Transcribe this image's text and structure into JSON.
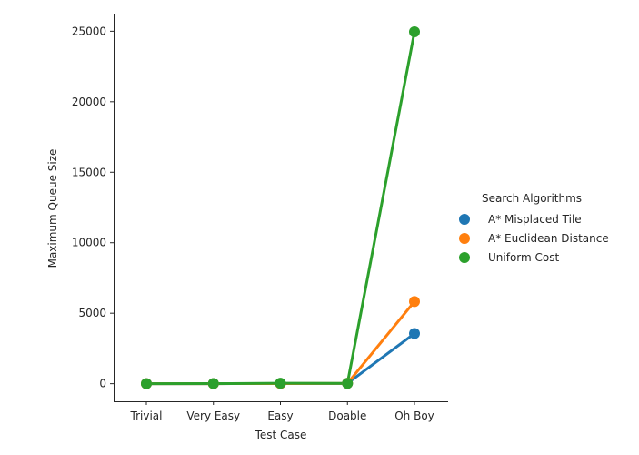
{
  "chart_data": {
    "type": "line",
    "categories": [
      "Trivial",
      "Very Easy",
      "Easy",
      "Doable",
      "Oh Boy"
    ],
    "xlabel": "Test Case",
    "ylabel": "Maximum Queue Size",
    "ylim": [
      -1250,
      26250
    ],
    "yticks": [
      0,
      5000,
      10000,
      15000,
      20000,
      25000
    ],
    "legend": {
      "title": "Search Algorithms",
      "placement": "right"
    },
    "series": [
      {
        "name": "A* Misplaced Tile",
        "color": "#1f77b4",
        "values": [
          1,
          4,
          10,
          20,
          3560
        ]
      },
      {
        "name": "A* Euclidean Distance",
        "color": "#ff7f0e",
        "values": [
          1,
          4,
          10,
          22,
          5830
        ]
      },
      {
        "name": "Uniform Cost",
        "color": "#2ca02c",
        "values": [
          1,
          6,
          30,
          25,
          24960
        ]
      }
    ]
  }
}
